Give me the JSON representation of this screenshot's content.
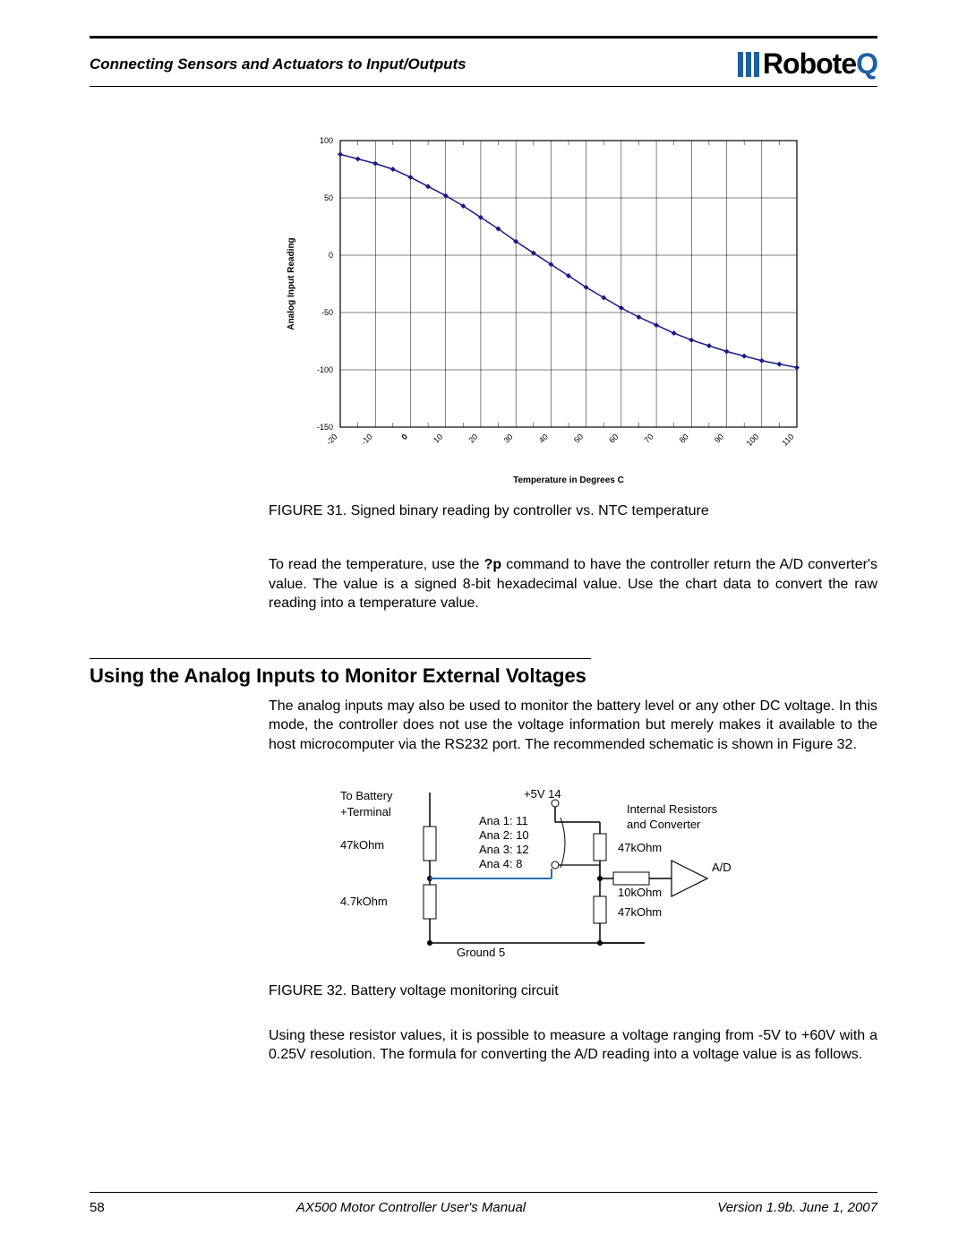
{
  "header": {
    "section": "Connecting Sensors and Actuators to Input/Outputs",
    "logo_text": "Robote",
    "logo_suffix": "Q"
  },
  "chart1": {
    "type": "line",
    "x_label": "Temperature in Degrees C",
    "y_label": "Analog Input Reading",
    "x_ticks": [
      -20,
      -10,
      0,
      10,
      20,
      30,
      40,
      50,
      60,
      70,
      80,
      90,
      100,
      110
    ],
    "y_ticks": [
      -150,
      -100,
      -50,
      0,
      50,
      100
    ],
    "ylim": [
      -150,
      100
    ],
    "xlim": [
      -20,
      110
    ],
    "points": [
      [
        -20,
        88
      ],
      [
        -15,
        84
      ],
      [
        -10,
        80
      ],
      [
        -5,
        75
      ],
      [
        0,
        68
      ],
      [
        5,
        60
      ],
      [
        10,
        52
      ],
      [
        15,
        43
      ],
      [
        20,
        33
      ],
      [
        25,
        23
      ],
      [
        30,
        12
      ],
      [
        35,
        2
      ],
      [
        40,
        -8
      ],
      [
        45,
        -18
      ],
      [
        50,
        -28
      ],
      [
        55,
        -37
      ],
      [
        60,
        -46
      ],
      [
        65,
        -54
      ],
      [
        70,
        -61
      ],
      [
        75,
        -68
      ],
      [
        80,
        -74
      ],
      [
        85,
        -79
      ],
      [
        90,
        -84
      ],
      [
        95,
        -88
      ],
      [
        100,
        -92
      ],
      [
        105,
        -95
      ],
      [
        110,
        -98
      ]
    ],
    "line_color": "#1a1a8a",
    "marker_color": "#1a1a8a",
    "grid_color": "#000",
    "background": "#ffffff",
    "tick_fontsize": 9,
    "label_fontsize": 10
  },
  "fig31_caption": "FIGURE 31.  Signed binary reading by controller vs. NTC temperature",
  "para1_pre": "To read the temperature, use the ",
  "para1_bold": "?p",
  "para1_post": " command to have the controller return the A/D converter's value. The value is a signed 8-bit hexadecimal value. Use the chart data to convert the raw reading into a temperature value.",
  "heading2": "Using the Analog Inputs to Monitor External Voltages",
  "para2": "The analog inputs may also be used to monitor the battery level or any other DC voltage. In this mode, the controller does not use the voltage information but merely makes it available to the host microcomputer via the RS232 port. The recommended schematic is shown in Figure 32.",
  "circuit": {
    "labels": {
      "to_battery1": "To Battery",
      "to_battery2": "+Terminal",
      "r1": "47kOhm",
      "r2": "4.7kOhm",
      "ground": "Ground   5",
      "v5": "+5V  14",
      "ana1": "Ana 1:   11",
      "ana2": "Ana 2:   10",
      "ana3": "Ana 3:   12",
      "ana4": "Ana 4:    8",
      "r3": "47kOhm",
      "r4": "10kOhm",
      "r5": "47kOhm",
      "ad": "A/D",
      "internal1": "Internal Resistors",
      "internal2": "and Converter"
    },
    "wire_color": "#000",
    "ana_line_color": "#2a6fb5"
  },
  "fig32_caption": "FIGURE 32.  Battery voltage monitoring circuit",
  "para3": "Using these resistor values, it is possible to measure a voltage ranging from -5V to +60V with a 0.25V resolution. The formula for converting the A/D reading into a voltage value is as follows.",
  "footer": {
    "page": "58",
    "center": "AX500 Motor Controller User's Manual",
    "right": "Version 1.9b. June 1, 2007"
  }
}
